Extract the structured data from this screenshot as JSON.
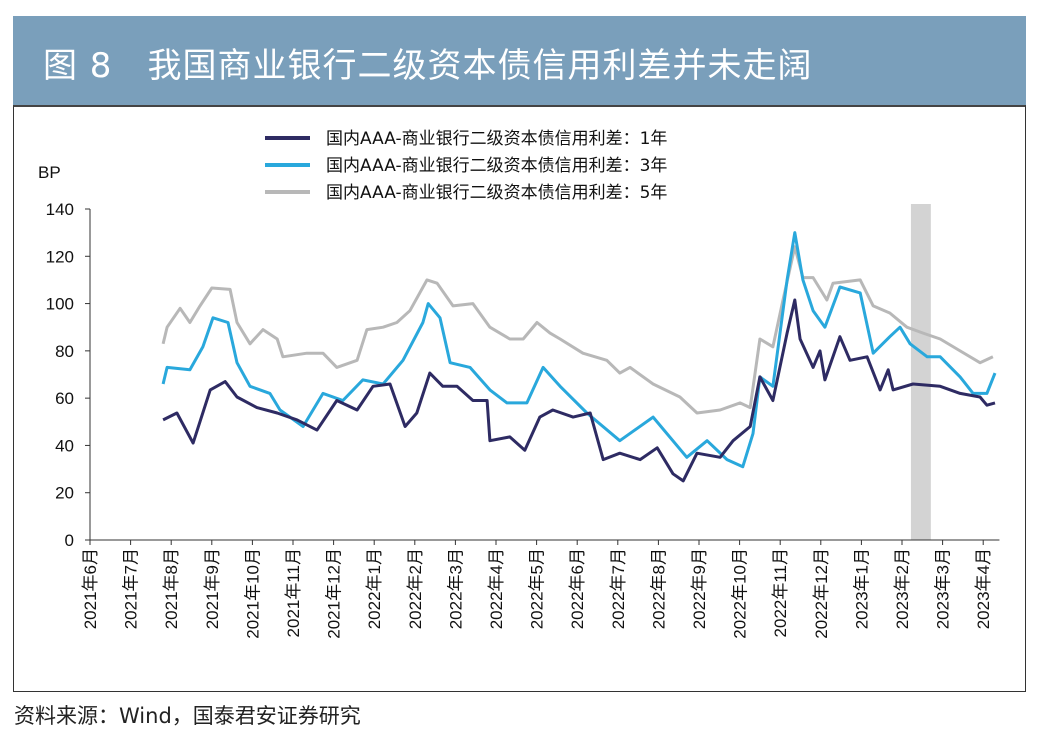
{
  "title": "图 8　我国商业银行二级资本债信用利差并未走阔",
  "source": "资料来源：Wind，国泰君安证券研究",
  "chart_data": {
    "type": "line",
    "title": "我国商业银行二级资本债信用利差并未走阔",
    "ylabel": "BP",
    "xlabel": "",
    "x_unit": "months since 2021-06-01",
    "xlim": [
      0,
      22.4
    ],
    "ylim": [
      0,
      140
    ],
    "yticks": [
      0,
      20,
      40,
      60,
      80,
      100,
      120,
      140
    ],
    "xtick_labels": [
      "2021年6月",
      "2021年7月",
      "2021年8月",
      "2021年9月",
      "2021年10月",
      "2021年11月",
      "2021年12月",
      "2022年1月",
      "2022年2月",
      "2022年3月",
      "2022年4月",
      "2022年5月",
      "2022年6月",
      "2022年7月",
      "2022年8月",
      "2022年9月",
      "2022年10月",
      "2022年11月",
      "2022年12月",
      "2023年1月",
      "2023年2月",
      "2023年3月",
      "2023年4月"
    ],
    "legend_position": "top-center",
    "grid": false,
    "shaded_region": [
      20.22,
      20.71
    ],
    "series": [
      {
        "name": "国内AAA-商业银行二级资本债信用利差：1年",
        "color": "#2e2b63",
        "points": [
          [
            1.8,
            50.8
          ],
          [
            2.14,
            53.7
          ],
          [
            2.54,
            41
          ],
          [
            2.96,
            63.5
          ],
          [
            3.33,
            67
          ],
          [
            3.62,
            60.5
          ],
          [
            4.11,
            56
          ],
          [
            4.61,
            53.7
          ],
          [
            5.1,
            50.8
          ],
          [
            5.59,
            46.5
          ],
          [
            6.08,
            59
          ],
          [
            6.58,
            55
          ],
          [
            6.97,
            65
          ],
          [
            7.39,
            66
          ],
          [
            7.76,
            48
          ],
          [
            8.05,
            53.7
          ],
          [
            8.37,
            70.6
          ],
          [
            8.69,
            65
          ],
          [
            9.04,
            65
          ],
          [
            9.43,
            59
          ],
          [
            9.78,
            59
          ],
          [
            9.85,
            42
          ],
          [
            10.34,
            43.6
          ],
          [
            10.71,
            38
          ],
          [
            11.08,
            52
          ],
          [
            11.4,
            55
          ],
          [
            11.9,
            52
          ],
          [
            12.32,
            53.7
          ],
          [
            12.64,
            34
          ],
          [
            13.05,
            36.7
          ],
          [
            13.55,
            34
          ],
          [
            13.97,
            39
          ],
          [
            14.36,
            28
          ],
          [
            14.61,
            25
          ],
          [
            14.95,
            36.7
          ],
          [
            15.52,
            35
          ],
          [
            15.84,
            42
          ],
          [
            16.26,
            48
          ],
          [
            16.5,
            69
          ],
          [
            16.82,
            59
          ],
          [
            17.17,
            87.5
          ],
          [
            17.36,
            101.5
          ],
          [
            17.49,
            85
          ],
          [
            17.81,
            73
          ],
          [
            17.98,
            80
          ],
          [
            18.1,
            67.7
          ],
          [
            18.47,
            86
          ],
          [
            18.72,
            76
          ],
          [
            19.14,
            77.5
          ],
          [
            19.46,
            63.5
          ],
          [
            19.66,
            72
          ],
          [
            19.78,
            63.5
          ],
          [
            20.27,
            66
          ],
          [
            20.94,
            65
          ],
          [
            21.43,
            62
          ],
          [
            21.92,
            60.5
          ],
          [
            22.09,
            57
          ],
          [
            22.29,
            58
          ]
        ]
      },
      {
        "name": "国内AAA-商业银行二级资本债信用利差：3年",
        "color": "#29a8dc",
        "points": [
          [
            1.8,
            66
          ],
          [
            1.9,
            73
          ],
          [
            2.46,
            72
          ],
          [
            2.78,
            81.7
          ],
          [
            3.03,
            94
          ],
          [
            3.4,
            92
          ],
          [
            3.62,
            75
          ],
          [
            3.94,
            65
          ],
          [
            4.43,
            62
          ],
          [
            4.68,
            55
          ],
          [
            5.25,
            48
          ],
          [
            5.74,
            62
          ],
          [
            6.23,
            59
          ],
          [
            6.72,
            67.7
          ],
          [
            7.22,
            66
          ],
          [
            7.71,
            76
          ],
          [
            8.2,
            92
          ],
          [
            8.33,
            100
          ],
          [
            8.62,
            94
          ],
          [
            8.87,
            75
          ],
          [
            9.36,
            73
          ],
          [
            9.85,
            63.5
          ],
          [
            10.27,
            58
          ],
          [
            10.76,
            58
          ],
          [
            11.16,
            73
          ],
          [
            11.58,
            65
          ],
          [
            12.24,
            53.7
          ],
          [
            13.05,
            42
          ],
          [
            13.87,
            52
          ],
          [
            14.7,
            35
          ],
          [
            15.2,
            42
          ],
          [
            15.69,
            34
          ],
          [
            16.08,
            31
          ],
          [
            16.33,
            45
          ],
          [
            16.5,
            69
          ],
          [
            16.82,
            65
          ],
          [
            17.17,
            110
          ],
          [
            17.36,
            130
          ],
          [
            17.56,
            110
          ],
          [
            17.81,
            97
          ],
          [
            18.1,
            90
          ],
          [
            18.47,
            107
          ],
          [
            18.97,
            104.5
          ],
          [
            19.29,
            79
          ],
          [
            19.7,
            86
          ],
          [
            19.95,
            90
          ],
          [
            20.2,
            83
          ],
          [
            20.62,
            77.5
          ],
          [
            20.94,
            77.5
          ],
          [
            21.43,
            69
          ],
          [
            21.75,
            62
          ],
          [
            22.09,
            62
          ],
          [
            22.29,
            70.6
          ]
        ]
      },
      {
        "name": "国内AAA-商业银行二级资本债信用利差：5年",
        "color": "#b8b8b8",
        "points": [
          [
            1.8,
            83
          ],
          [
            1.9,
            90
          ],
          [
            2.22,
            98
          ],
          [
            2.46,
            92
          ],
          [
            2.71,
            99
          ],
          [
            3.0,
            106.6
          ],
          [
            3.45,
            106
          ],
          [
            3.62,
            92
          ],
          [
            3.94,
            83
          ],
          [
            4.26,
            89
          ],
          [
            4.61,
            85
          ],
          [
            4.75,
            77.5
          ],
          [
            5.34,
            79
          ],
          [
            5.74,
            79
          ],
          [
            6.08,
            73
          ],
          [
            6.58,
            76
          ],
          [
            6.82,
            89
          ],
          [
            7.22,
            90
          ],
          [
            7.56,
            92
          ],
          [
            7.88,
            97
          ],
          [
            8.3,
            110
          ],
          [
            8.55,
            108.6
          ],
          [
            8.94,
            99
          ],
          [
            9.43,
            100
          ],
          [
            9.85,
            90
          ],
          [
            10.34,
            85
          ],
          [
            10.67,
            85
          ],
          [
            11.01,
            92
          ],
          [
            11.33,
            87.5
          ],
          [
            11.58,
            85
          ],
          [
            12.14,
            79
          ],
          [
            12.73,
            76
          ],
          [
            13.05,
            70.6
          ],
          [
            13.3,
            73
          ],
          [
            13.87,
            66
          ],
          [
            14.53,
            60.5
          ],
          [
            14.95,
            53.7
          ],
          [
            15.52,
            55
          ],
          [
            16.01,
            58
          ],
          [
            16.26,
            56
          ],
          [
            16.5,
            85
          ],
          [
            16.82,
            81.7
          ],
          [
            17.07,
            101.5
          ],
          [
            17.36,
            124
          ],
          [
            17.56,
            111
          ],
          [
            17.81,
            111
          ],
          [
            18.15,
            101.5
          ],
          [
            18.3,
            108.6
          ],
          [
            18.97,
            110
          ],
          [
            19.29,
            99
          ],
          [
            19.7,
            96
          ],
          [
            20.12,
            90
          ],
          [
            20.52,
            87.5
          ],
          [
            20.94,
            85
          ],
          [
            21.43,
            80
          ],
          [
            21.92,
            75
          ],
          [
            22.24,
            77.5
          ]
        ]
      }
    ]
  }
}
